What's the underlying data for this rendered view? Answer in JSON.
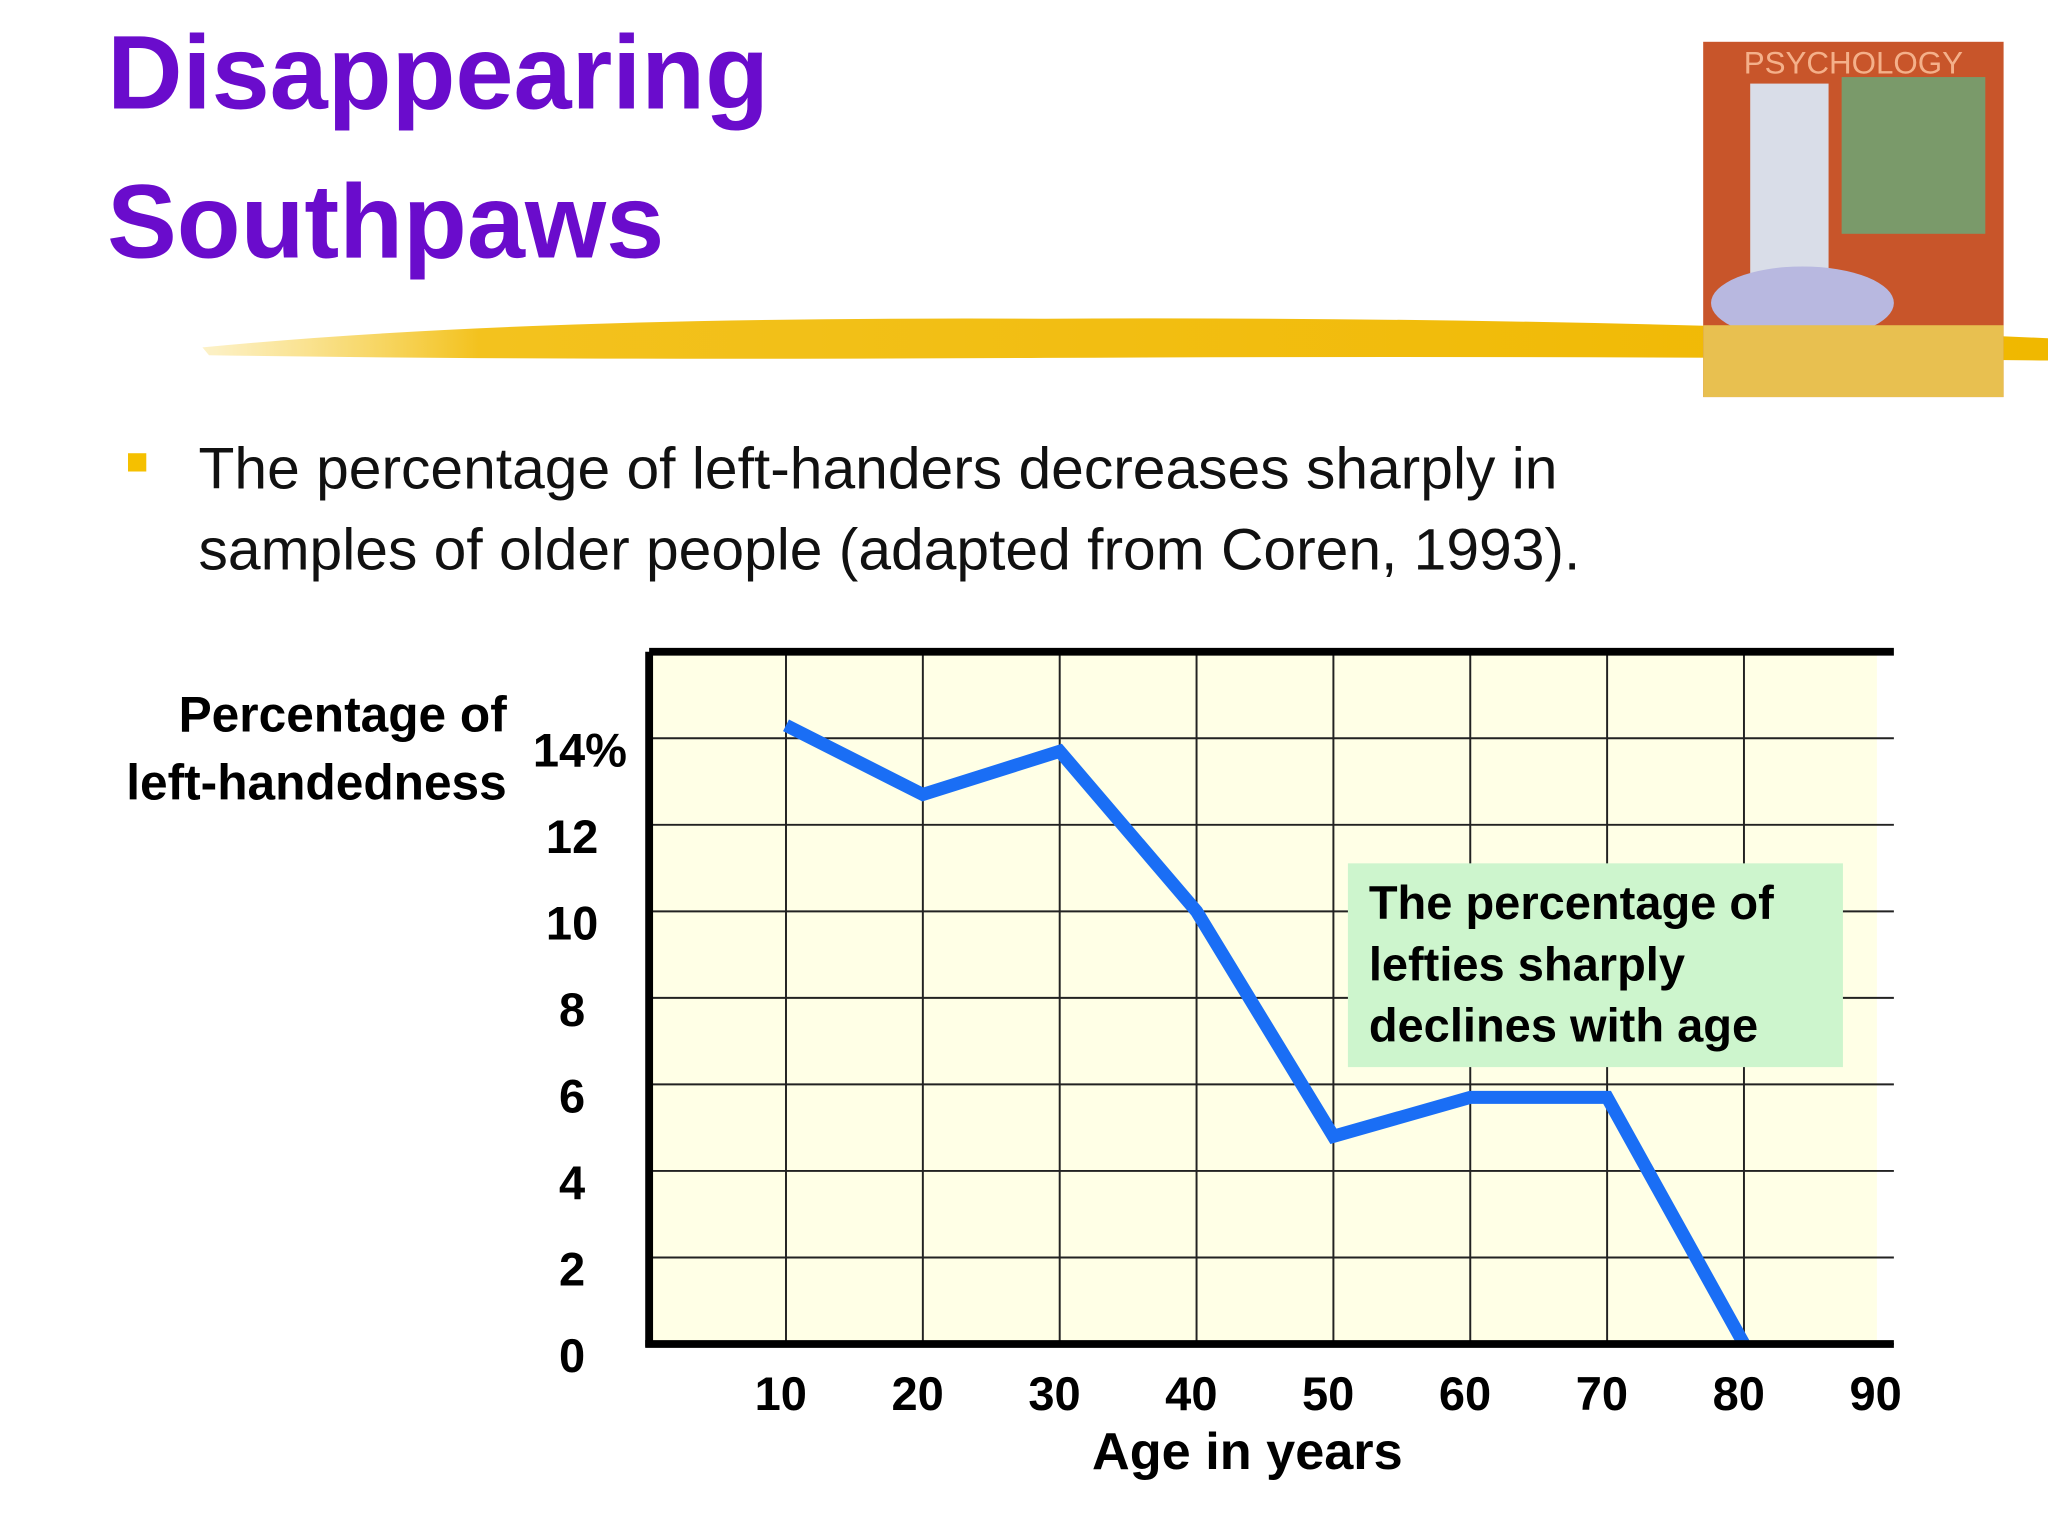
{
  "slide": {
    "title": [
      "Disappearing",
      "Southpaws"
    ],
    "bullet": [
      "The percentage of left-handers decreases sharply in",
      "samples of older people (adapted from Coren, 1993)."
    ],
    "cover_title": "PSYCHOLOGY"
  },
  "chart_data": {
    "type": "line",
    "y_label": [
      "Percentage of",
      "left-handedness"
    ],
    "x_label": "Age in years",
    "x": [
      10,
      20,
      30,
      40,
      50,
      60,
      70,
      80
    ],
    "values": [
      14.3,
      12.7,
      13.7,
      10,
      4.8,
      5.7,
      5.7,
      0
    ],
    "color": "#1a6ef5",
    "xlim": [
      0,
      90
    ],
    "xticks": [
      10,
      20,
      30,
      40,
      50,
      60,
      70,
      80,
      90
    ],
    "ylim": [
      0,
      16
    ],
    "yticks": [
      0,
      2,
      4,
      6,
      8,
      10,
      12,
      {
        "value": 14,
        "label": "14%"
      }
    ],
    "grid": true,
    "annotation": [
      "The percentage of",
      "lefties sharply",
      "declines with age"
    ]
  }
}
